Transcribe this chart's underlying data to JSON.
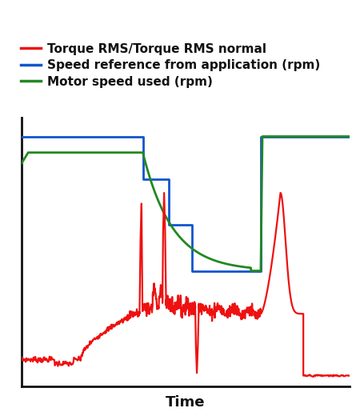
{
  "title": "",
  "xlabel": "Time",
  "legend_entries": [
    "Torque RMS/Torque RMS normal",
    "Speed reference from application (rpm)",
    "Motor speed used (rpm)"
  ],
  "legend_colors": [
    "#ee1111",
    "#1155cc",
    "#228822"
  ],
  "line_colors": {
    "red": "#ee1111",
    "blue": "#1155cc",
    "green": "#228822"
  },
  "background_color": "#ffffff",
  "axis_color": "#111111",
  "xlabel_fontsize": 13,
  "legend_fontsize": 11
}
